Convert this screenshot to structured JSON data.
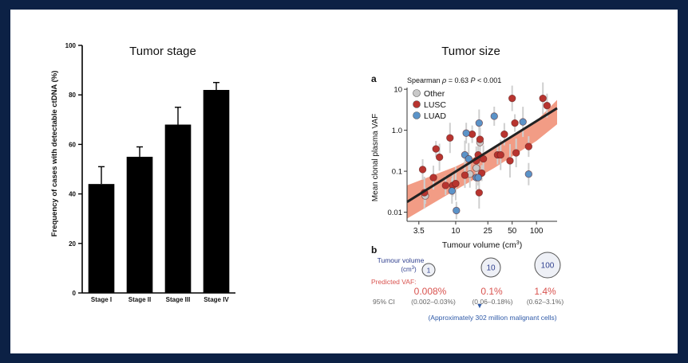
{
  "colors": {
    "background": "#0c2145",
    "bar": "#000000",
    "lusc": "#b8342f",
    "luad": "#5b93c8",
    "other": "#c9c9c9",
    "band": "#f08b70",
    "trend": "#222222",
    "predicted": "#d9534f",
    "volume_label": "#2f3f8f"
  },
  "left": {
    "title": "Tumor stage"
  },
  "right": {
    "title": "Tumor size",
    "panel_a": "a",
    "panel_b": "b",
    "spearman_prefix": "Spearman ",
    "spearman_rho": "ρ",
    "spearman_value": " = 0.63 ",
    "spearman_p": "P",
    "spearman_pval": " < 0.001",
    "tumour_volume_label": "Tumour volume",
    "tumour_volume_unit": "(cm",
    "tumour_volume_unit_sup": "3",
    "tumour_volume_unit_end": ")",
    "predicted_vaf_label": "Predicted VAF:",
    "ci_label_prefix": "95% CI",
    "circles": [
      {
        "volume": "1",
        "vaf": "0.008%",
        "ci": "(0.002–0.03%)"
      },
      {
        "volume": "10",
        "vaf": "0.1%",
        "ci": "(0.06–0.18%)"
      },
      {
        "volume": "100",
        "vaf": "1.4%",
        "ci": "(0.62–3.1%)"
      }
    ],
    "malignant_cells_note": "(Approximately 302 million malignant cells)",
    "arrow_glyph": "▼"
  },
  "chart_data": [
    {
      "type": "bar",
      "title": "Tumor stage",
      "ylabel": "Frequency of cases with detectable ctDNA (%)",
      "xlabel": "",
      "categories": [
        "Stage I",
        "Stage II",
        "Stage III",
        "Stage IV"
      ],
      "values": [
        44,
        55,
        68,
        82
      ],
      "error_upper": [
        51,
        59,
        75,
        85
      ],
      "ylim": [
        0,
        100
      ],
      "yticks": [
        0,
        20,
        40,
        60,
        80,
        100
      ],
      "grid": false
    },
    {
      "type": "scatter",
      "title": "Tumor size",
      "xlabel": "Tumour volume (cm",
      "xlabel_sup": "3",
      "xlabel_end": ")",
      "ylabel": "Mean clonal plasma VAF",
      "x_scale": "log",
      "y_scale": "log",
      "xlim": [
        2.5,
        180
      ],
      "ylim": [
        0.006,
        11
      ],
      "xticks": [
        3.5,
        10,
        25,
        50,
        100
      ],
      "xtick_labels": [
        "3.5",
        "10",
        "25",
        "50",
        "100"
      ],
      "yticks": [
        0.01,
        0.1,
        1.0,
        10
      ],
      "ytick_labels": [
        "0.01",
        "0.1",
        "1.0",
        "10"
      ],
      "legend_position": "top-left",
      "series": [
        {
          "name": "Other",
          "color": "#c9c9c9",
          "points": [
            [
              4.2,
              0.025
            ],
            [
              15,
              0.085
            ],
            [
              18,
              0.12
            ],
            [
              20,
              0.5
            ]
          ]
        },
        {
          "name": "LUSC",
          "color": "#b8342f",
          "points": [
            [
              3.9,
              0.11
            ],
            [
              4.1,
              0.03
            ],
            [
              5.3,
              0.07
            ],
            [
              5.7,
              0.35
            ],
            [
              6.3,
              0.22
            ],
            [
              7.5,
              0.045
            ],
            [
              8.5,
              0.65
            ],
            [
              9.2,
              0.045
            ],
            [
              10,
              0.05
            ],
            [
              13,
              0.08
            ],
            [
              16,
              0.8
            ],
            [
              18,
              0.18
            ],
            [
              19,
              0.25
            ],
            [
              19.5,
              0.03
            ],
            [
              20,
              0.6
            ],
            [
              21,
              0.09
            ],
            [
              22,
              0.2
            ],
            [
              33,
              0.25
            ],
            [
              36,
              0.25
            ],
            [
              40,
              0.8
            ],
            [
              47,
              0.18
            ],
            [
              50,
              6
            ],
            [
              54,
              1.5
            ],
            [
              56,
              0.28
            ],
            [
              80,
              0.4
            ],
            [
              120,
              6
            ],
            [
              135,
              4
            ]
          ]
        },
        {
          "name": "LUAD",
          "color": "#5b93c8",
          "points": [
            [
              9,
              0.033
            ],
            [
              10.2,
              0.011
            ],
            [
              13,
              0.25
            ],
            [
              13.5,
              0.85
            ],
            [
              14.5,
              0.2
            ],
            [
              18,
              0.07
            ],
            [
              19,
              0.07
            ],
            [
              19.5,
              1.5
            ],
            [
              30,
              2.2
            ],
            [
              68,
              1.6
            ],
            [
              80,
              0.085
            ]
          ]
        }
      ],
      "trend_line": {
        "x": [
          2.5,
          180
        ],
        "y": [
          0.0178,
          3.45
        ]
      },
      "confidence_band": {
        "x": [
          2.5,
          10,
          30,
          100,
          180
        ],
        "upper": [
          0.045,
          0.13,
          0.38,
          1.7,
          5.5
        ],
        "lower": [
          0.007,
          0.035,
          0.12,
          0.55,
          1.4
        ]
      }
    }
  ]
}
